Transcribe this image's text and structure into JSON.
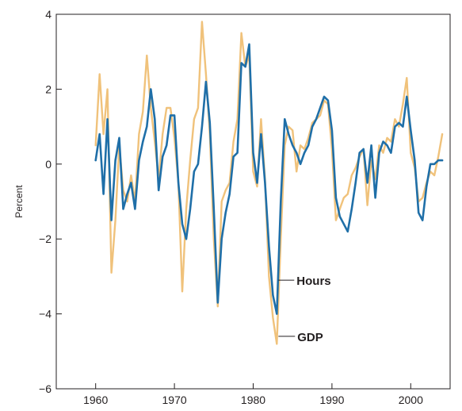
{
  "chart_data": {
    "type": "line",
    "title": "",
    "xlabel": "",
    "ylabel": "Percent",
    "xlim": [
      1955,
      2005
    ],
    "ylim": [
      -6,
      4
    ],
    "x_ticks": [
      1960,
      1970,
      1980,
      1990,
      2000
    ],
    "y_ticks": [
      -6,
      -4,
      -2,
      0,
      2,
      4
    ],
    "grid": false,
    "legend": "direct labels",
    "series": [
      {
        "name": "Hours",
        "color": "#1f6fa8",
        "x": [
          1960.0,
          1960.5,
          1961.0,
          1961.5,
          1962.0,
          1962.5,
          1963.0,
          1963.5,
          1964.0,
          1964.5,
          1965.0,
          1965.5,
          1966.0,
          1966.5,
          1967.0,
          1967.5,
          1968.0,
          1968.5,
          1969.0,
          1969.5,
          1970.0,
          1970.5,
          1971.0,
          1971.5,
          1972.0,
          1972.5,
          1973.0,
          1973.5,
          1974.0,
          1974.5,
          1975.0,
          1975.5,
          1976.0,
          1976.5,
          1977.0,
          1977.5,
          1978.0,
          1978.5,
          1979.0,
          1979.5,
          1980.0,
          1980.5,
          1981.0,
          1981.5,
          1982.0,
          1982.5,
          1983.0,
          1983.5,
          1984.0,
          1984.5,
          1985.0,
          1985.5,
          1986.0,
          1986.5,
          1987.0,
          1987.5,
          1988.0,
          1988.5,
          1989.0,
          1989.5,
          1990.0,
          1990.5,
          1991.0,
          1991.5,
          1992.0,
          1992.5,
          1993.0,
          1993.5,
          1994.0,
          1994.5,
          1995.0,
          1995.5,
          1996.0,
          1996.5,
          1997.0,
          1997.5,
          1998.0,
          1998.5,
          1999.0,
          1999.5,
          2000.0,
          2000.5,
          2001.0,
          2001.5,
          2002.0,
          2002.5,
          2003.0,
          2003.5,
          2004.0
        ],
        "values": [
          0.1,
          0.8,
          -0.8,
          1.2,
          -1.5,
          0.1,
          0.7,
          -1.2,
          -0.8,
          -0.5,
          -1.2,
          0.1,
          0.6,
          1.0,
          2.0,
          1.2,
          -0.7,
          0.2,
          0.5,
          1.3,
          1.3,
          -0.5,
          -1.6,
          -2.0,
          -1.2,
          -0.2,
          0.0,
          1.0,
          2.2,
          1.1,
          -1.2,
          -3.7,
          -2.0,
          -1.3,
          -0.8,
          0.2,
          0.3,
          2.7,
          2.6,
          3.2,
          0.3,
          -0.5,
          0.8,
          -0.5,
          -2.2,
          -3.5,
          -4.0,
          -1.0,
          1.2,
          0.8,
          0.5,
          0.3,
          0.0,
          0.3,
          0.5,
          1.0,
          1.2,
          1.5,
          1.8,
          1.7,
          0.9,
          -0.9,
          -1.4,
          -1.6,
          -1.8,
          -1.2,
          -0.5,
          0.3,
          0.4,
          -0.5,
          0.5,
          -0.9,
          0.3,
          0.6,
          0.5,
          0.3,
          1.0,
          1.1,
          1.0,
          1.8,
          0.9,
          0.1,
          -1.3,
          -1.5,
          -0.6,
          0.0,
          0.0,
          0.1,
          0.1
        ]
      },
      {
        "name": "GDP",
        "color": "#f0c27b",
        "x": [
          1960.0,
          1960.5,
          1961.0,
          1961.5,
          1962.0,
          1962.5,
          1963.0,
          1963.5,
          1964.0,
          1964.5,
          1965.0,
          1965.5,
          1966.0,
          1966.5,
          1967.0,
          1967.5,
          1968.0,
          1968.5,
          1969.0,
          1969.5,
          1970.0,
          1970.5,
          1971.0,
          1971.5,
          1972.0,
          1972.5,
          1973.0,
          1973.5,
          1974.0,
          1974.5,
          1975.0,
          1975.5,
          1976.0,
          1976.5,
          1977.0,
          1977.5,
          1978.0,
          1978.5,
          1979.0,
          1979.5,
          1980.0,
          1980.5,
          1981.0,
          1981.5,
          1982.0,
          1982.5,
          1983.0,
          1983.5,
          1984.0,
          1984.5,
          1985.0,
          1985.5,
          1986.0,
          1986.5,
          1987.0,
          1987.5,
          1988.0,
          1988.5,
          1989.0,
          1989.5,
          1990.0,
          1990.5,
          1991.0,
          1991.5,
          1992.0,
          1992.5,
          1993.0,
          1993.5,
          1994.0,
          1994.5,
          1995.0,
          1995.5,
          1996.0,
          1996.5,
          1997.0,
          1997.5,
          1998.0,
          1998.5,
          1999.0,
          1999.5,
          2000.0,
          2000.5,
          2001.0,
          2001.5,
          2002.0,
          2002.5,
          2003.0,
          2003.5,
          2004.0
        ],
        "values": [
          0.5,
          2.4,
          0.8,
          2.0,
          -2.9,
          -1.5,
          0.5,
          -0.7,
          -1.0,
          -0.3,
          -1.0,
          0.8,
          1.4,
          2.9,
          1.5,
          0.6,
          -0.4,
          0.8,
          1.5,
          1.5,
          0.7,
          -0.5,
          -3.4,
          -1.2,
          0.1,
          1.2,
          1.5,
          3.8,
          2.4,
          0.8,
          -2.0,
          -3.8,
          -1.0,
          -0.7,
          -0.5,
          0.6,
          1.2,
          3.5,
          2.6,
          2.9,
          -0.2,
          -0.6,
          1.2,
          -0.4,
          -3.0,
          -4.1,
          -4.8,
          -2.0,
          0.5,
          1.0,
          0.9,
          -0.2,
          0.5,
          0.4,
          0.7,
          1.1,
          1.2,
          1.3,
          1.7,
          1.6,
          0.4,
          -1.5,
          -1.2,
          -0.9,
          -0.8,
          -0.3,
          -0.1,
          0.2,
          0.4,
          -1.1,
          0.1,
          -0.4,
          0.5,
          0.3,
          0.7,
          0.6,
          1.2,
          1.0,
          1.6,
          2.3,
          0.3,
          -0.1,
          -1.0,
          -0.9,
          -0.5,
          -0.2,
          -0.3,
          0.2,
          0.8
        ]
      }
    ],
    "annotations": [
      {
        "text": "Hours",
        "x": 1983.6,
        "y": -3.1
      },
      {
        "text": "GDP",
        "x": 1983.7,
        "y": -4.6
      }
    ]
  }
}
